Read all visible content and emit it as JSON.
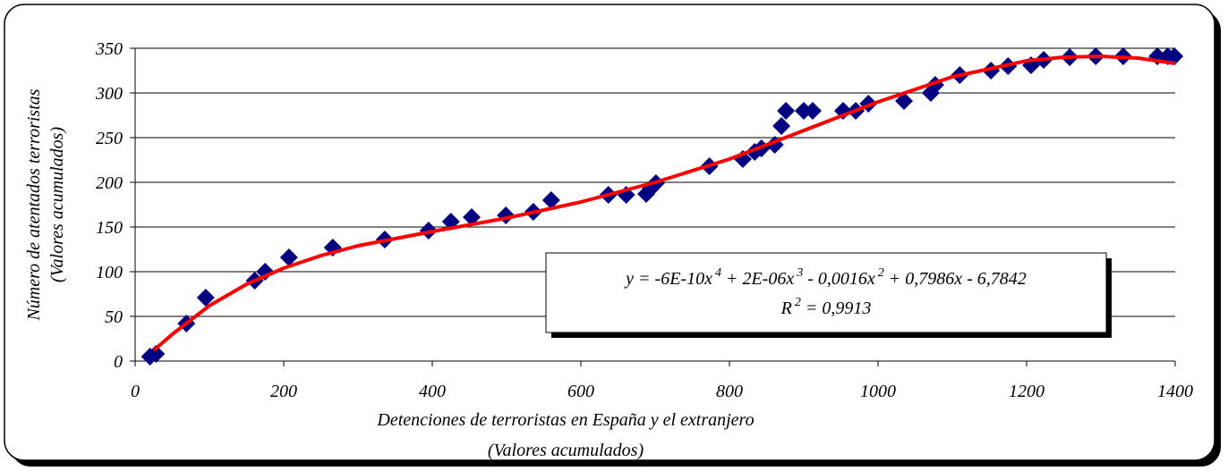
{
  "chart_data": {
    "type": "scatter",
    "y_label": [
      "Número de atentados terroristas",
      "(Valores acumulados)"
    ],
    "x_label": [
      "Detenciones de terroristas en España y el extranjero",
      "(Valores acumulados)"
    ],
    "xlim": [
      0,
      1400
    ],
    "xticks": [
      0,
      200,
      400,
      600,
      800,
      1000,
      1200,
      1400
    ],
    "ylim": [
      0,
      350
    ],
    "yticks": [
      0,
      50,
      100,
      150,
      200,
      250,
      300,
      350
    ],
    "grid": true,
    "annotation": {
      "equation": [
        "y = -6E-10x",
        "4",
        " + 2E-06x",
        "3",
        " - 0,0016x",
        "2",
        " + 0,7986x - 6,7842"
      ],
      "r2": [
        "R",
        "2",
        " = 0,9913"
      ]
    },
    "series": [
      {
        "color": "#000080",
        "marker": "diamond",
        "x": [
          20,
          28,
          69,
          95,
          161,
          175,
          207,
          266,
          336,
          395,
          425,
          453,
          499,
          536,
          560,
          637,
          661,
          688,
          694,
          701,
          773,
          818,
          834,
          843,
          861,
          870,
          876,
          900,
          912,
          953,
          970,
          987,
          1035,
          1071,
          1077,
          1110,
          1152,
          1175,
          1206,
          1223,
          1258,
          1293,
          1330,
          1376,
          1390,
          1399
        ],
        "values": [
          5,
          8,
          42,
          71,
          90,
          100,
          116,
          127,
          136,
          146,
          156,
          161,
          163,
          167,
          180,
          186,
          186,
          187,
          193,
          199,
          218,
          226,
          234,
          238,
          242,
          263,
          280,
          280,
          280,
          280,
          280,
          288,
          291,
          300,
          309,
          320,
          325,
          330,
          331,
          337,
          340,
          341,
          341,
          341,
          341,
          341
        ]
      },
      {
        "color": "#ff0000",
        "marker": "line",
        "x": [
          25,
          50,
          100,
          150,
          200,
          250,
          300,
          400,
          500,
          600,
          700,
          800,
          900,
          1000,
          1100,
          1200,
          1250,
          1300,
          1350,
          1400
        ],
        "values": [
          12,
          30,
          62,
          86,
          104,
          118,
          129,
          145,
          160,
          178,
          200,
          226,
          258,
          290,
          318,
          336,
          340,
          341,
          339,
          333
        ]
      }
    ]
  }
}
